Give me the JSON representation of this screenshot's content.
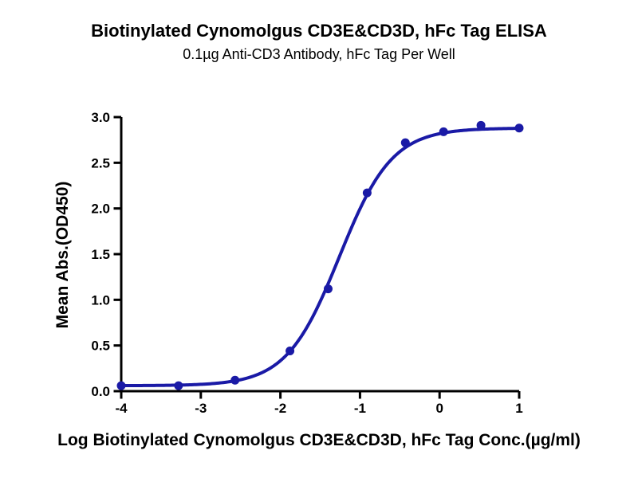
{
  "chart_data": {
    "type": "scatter",
    "title": "Biotinylated Cynomolgus CD3E&CD3D, hFc Tag ELISA",
    "subtitle": "0.1µg Anti-CD3 Antibody, hFc Tag Per Well",
    "xlabel": "Log Biotinylated Cynomolgus CD3E&CD3D, hFc Tag Conc.(µg/ml)",
    "ylabel": "Mean Abs.(OD450)",
    "xlim": [
      -4,
      1
    ],
    "ylim": [
      0,
      3
    ],
    "x_ticks": [
      {
        "value": -4,
        "label": "-4"
      },
      {
        "value": -3,
        "label": "-3"
      },
      {
        "value": -2,
        "label": "-2"
      },
      {
        "value": -1,
        "label": "-1"
      },
      {
        "value": 0,
        "label": "0"
      },
      {
        "value": 1,
        "label": "1"
      }
    ],
    "y_ticks": [
      {
        "value": 0.0,
        "label": "0.0"
      },
      {
        "value": 0.5,
        "label": "0.5"
      },
      {
        "value": 1.0,
        "label": "1.0"
      },
      {
        "value": 1.5,
        "label": "1.5"
      },
      {
        "value": 2.0,
        "label": "2.0"
      },
      {
        "value": 2.5,
        "label": "2.5"
      },
      {
        "value": 3.0,
        "label": "3.0"
      }
    ],
    "points": [
      {
        "x": -4.0,
        "y": 0.06
      },
      {
        "x": -3.28,
        "y": 0.06
      },
      {
        "x": -2.57,
        "y": 0.12
      },
      {
        "x": -1.88,
        "y": 0.44
      },
      {
        "x": -1.4,
        "y": 1.12
      },
      {
        "x": -0.91,
        "y": 2.17
      },
      {
        "x": -0.43,
        "y": 2.72
      },
      {
        "x": 0.05,
        "y": 2.84
      },
      {
        "x": 0.52,
        "y": 2.91
      },
      {
        "x": 1.0,
        "y": 2.88
      }
    ],
    "fit_curve": {
      "model": "4PL",
      "bottom": 0.06,
      "top": 2.88,
      "log_ec50": -1.26,
      "hill": 1.31
    },
    "curve_color": "#1a1aa6",
    "marker_color": "#1a1aa6",
    "axis_color": "#000000",
    "grid": false,
    "legend_position": "none"
  }
}
